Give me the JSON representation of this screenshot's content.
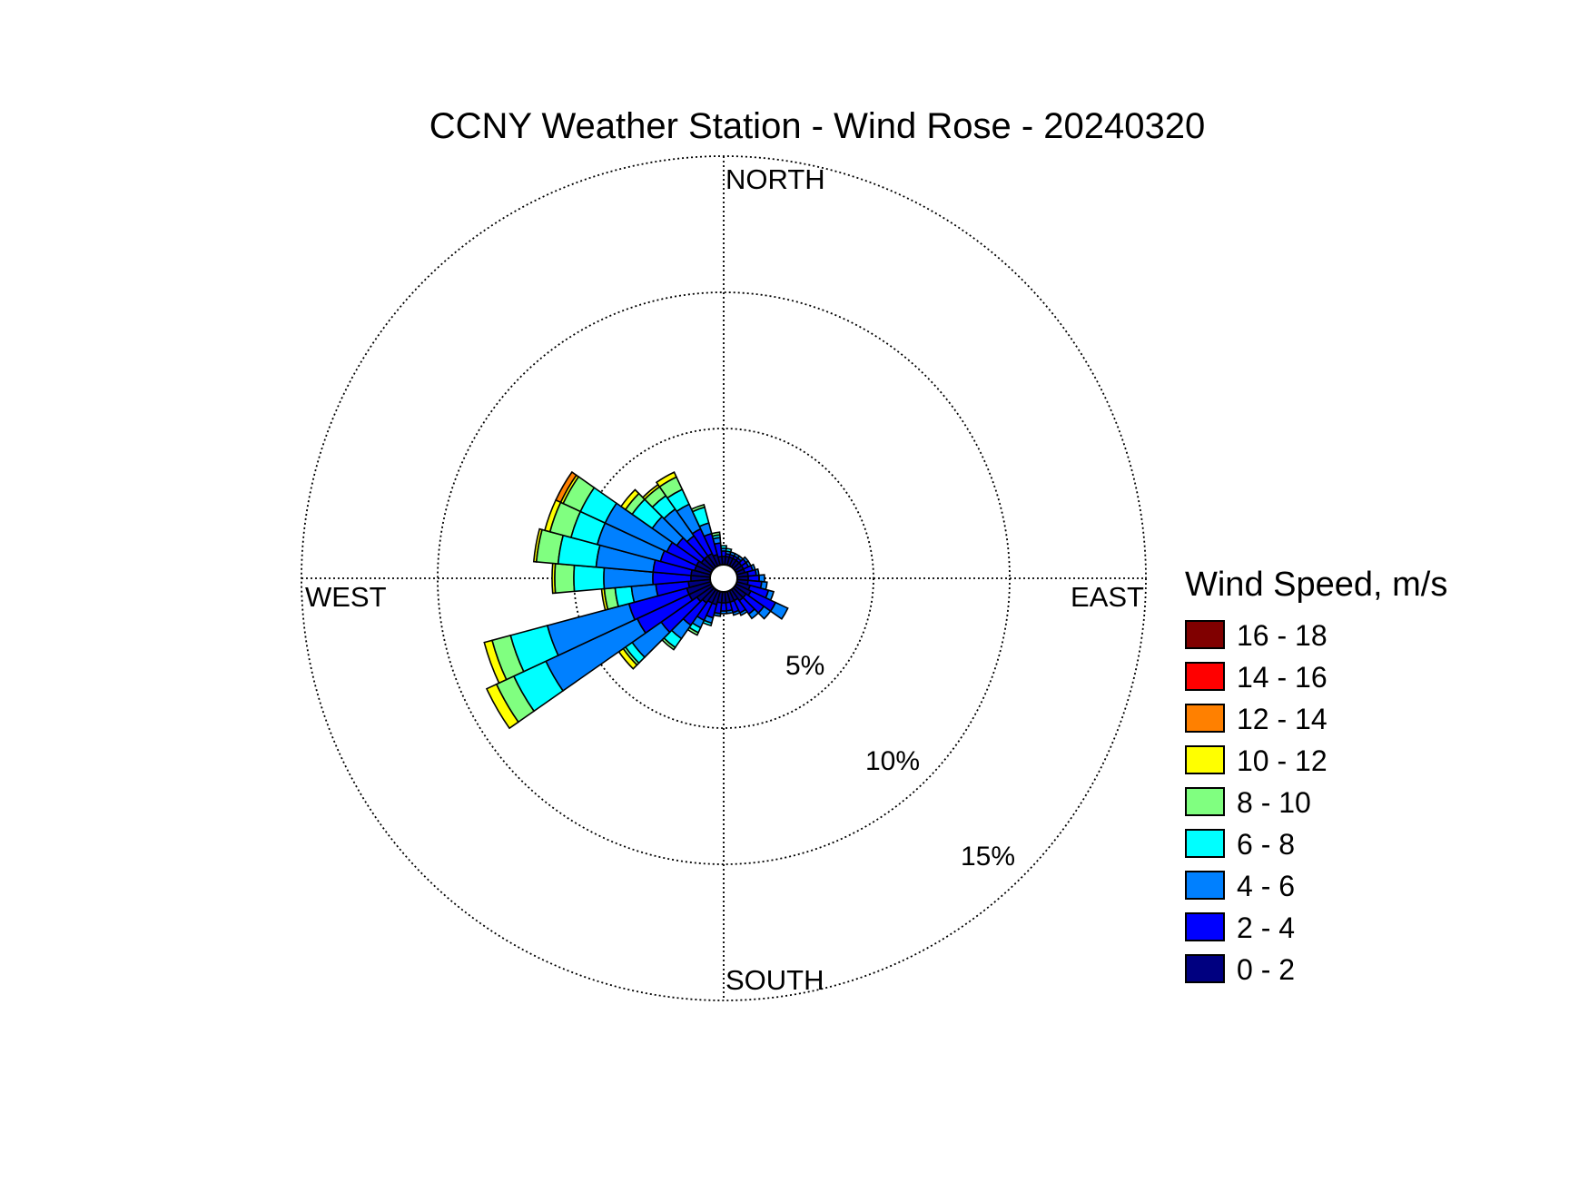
{
  "chart_data": {
    "type": "wind-rose",
    "title": "CCNY Weather Station - Wind Rose - 20240320",
    "direction_labels": {
      "north": "NORTH",
      "east": "EAST",
      "south": "SOUTH",
      "west": "WEST"
    },
    "ring_labels": [
      "5%",
      "10%",
      "15%"
    ],
    "rings_percent": [
      5,
      10,
      15
    ],
    "rmax_percent": 15,
    "sector_width_deg": 10,
    "legend": {
      "title": "Wind Speed, m/s",
      "bins": [
        {
          "label": "16 - 18",
          "color": "#800000"
        },
        {
          "label": "14 - 16",
          "color": "#ff0000"
        },
        {
          "label": "12 - 14",
          "color": "#ff8000"
        },
        {
          "label": "10 - 12",
          "color": "#ffff00"
        },
        {
          "label": "8 - 10",
          "color": "#80ff80"
        },
        {
          "label": "6 - 8",
          "color": "#00ffff"
        },
        {
          "label": "4 - 6",
          "color": "#0080ff"
        },
        {
          "label": "2 - 4",
          "color": "#0000ff"
        },
        {
          "label": "0 - 2",
          "color": "#000080"
        }
      ]
    },
    "speed_bins": [
      "0 - 2",
      "2 - 4",
      "4 - 6",
      "6 - 8",
      "8 - 10",
      "10 - 12",
      "12 - 14",
      "14 - 16",
      "16 - 18"
    ],
    "series_note_units": "percent frequency, cumulative per speed bin (bins listed low to high)",
    "sectors": [
      {
        "dir": 0,
        "cum": [
          0.3,
          0.5,
          0.6,
          0.7,
          0.7,
          0.7,
          0.7,
          0.7,
          0.7
        ]
      },
      {
        "dir": 10,
        "cum": [
          0.3,
          0.4,
          0.5,
          0.6,
          0.6,
          0.6,
          0.6,
          0.6,
          0.6
        ]
      },
      {
        "dir": 20,
        "cum": [
          0.3,
          0.4,
          0.5,
          0.5,
          0.5,
          0.5,
          0.5,
          0.5,
          0.5
        ]
      },
      {
        "dir": 30,
        "cum": [
          0.3,
          0.4,
          0.5,
          0.5,
          0.5,
          0.5,
          0.5,
          0.5,
          0.5
        ]
      },
      {
        "dir": 40,
        "cum": [
          0.3,
          0.4,
          0.5,
          0.5,
          0.5,
          0.5,
          0.5,
          0.5,
          0.5
        ]
      },
      {
        "dir": 50,
        "cum": [
          0.3,
          0.5,
          0.6,
          0.6,
          0.6,
          0.6,
          0.6,
          0.6,
          0.6
        ]
      },
      {
        "dir": 60,
        "cum": [
          0.3,
          0.5,
          0.6,
          0.6,
          0.6,
          0.6,
          0.6,
          0.6,
          0.6
        ]
      },
      {
        "dir": 70,
        "cum": [
          0.3,
          0.6,
          0.7,
          0.7,
          0.7,
          0.7,
          0.7,
          0.7,
          0.7
        ]
      },
      {
        "dir": 80,
        "cum": [
          0.4,
          0.7,
          0.8,
          0.8,
          0.8,
          0.8,
          0.8,
          0.8,
          0.8
        ]
      },
      {
        "dir": 90,
        "cum": [
          0.4,
          0.8,
          1.0,
          1.0,
          1.0,
          1.0,
          1.0,
          1.0,
          1.0
        ]
      },
      {
        "dir": 100,
        "cum": [
          0.4,
          0.9,
          1.1,
          1.1,
          1.1,
          1.1,
          1.1,
          1.1,
          1.1
        ]
      },
      {
        "dir": 110,
        "cum": [
          0.5,
          1.2,
          1.4,
          1.4,
          1.4,
          1.4,
          1.4,
          1.4,
          1.4
        ]
      },
      {
        "dir": 120,
        "cum": [
          0.6,
          1.6,
          2.1,
          2.1,
          2.1,
          2.1,
          2.1,
          2.1,
          2.1
        ]
      },
      {
        "dir": 130,
        "cum": [
          0.5,
          1.3,
          1.6,
          1.6,
          1.6,
          1.6,
          1.6,
          1.6,
          1.6
        ]
      },
      {
        "dir": 140,
        "cum": [
          0.5,
          1.1,
          1.3,
          1.3,
          1.3,
          1.3,
          1.3,
          1.3,
          1.3
        ]
      },
      {
        "dir": 150,
        "cum": [
          0.4,
          0.9,
          1.0,
          1.0,
          1.0,
          1.0,
          1.0,
          1.0,
          1.0
        ]
      },
      {
        "dir": 160,
        "cum": [
          0.4,
          0.8,
          0.9,
          0.9,
          0.9,
          0.9,
          0.9,
          0.9,
          0.9
        ]
      },
      {
        "dir": 170,
        "cum": [
          0.4,
          0.7,
          0.8,
          0.8,
          0.8,
          0.8,
          0.8,
          0.8,
          0.8
        ]
      },
      {
        "dir": 180,
        "cum": [
          0.4,
          0.7,
          0.8,
          0.8,
          0.8,
          0.8,
          0.8,
          0.8,
          0.8
        ]
      },
      {
        "dir": 190,
        "cum": [
          0.4,
          0.8,
          0.9,
          0.9,
          0.9,
          0.9,
          0.9,
          0.9,
          0.9
        ]
      },
      {
        "dir": 200,
        "cum": [
          0.5,
          1.0,
          1.2,
          1.3,
          1.3,
          1.3,
          1.3,
          1.3,
          1.3
        ]
      },
      {
        "dir": 210,
        "cum": [
          0.5,
          1.2,
          1.5,
          1.7,
          1.8,
          1.8,
          1.8,
          1.8,
          1.8
        ]
      },
      {
        "dir": 220,
        "cum": [
          0.6,
          1.6,
          2.2,
          2.6,
          2.7,
          2.7,
          2.7,
          2.7,
          2.7
        ]
      },
      {
        "dir": 230,
        "cum": [
          0.7,
          2.3,
          3.6,
          3.9,
          4.0,
          4.2,
          4.2,
          4.2,
          4.2
        ]
      },
      {
        "dir": 240,
        "cum": [
          0.9,
          3.0,
          6.7,
          8.0,
          8.7,
          9.1,
          9.1,
          9.1,
          9.1
        ]
      },
      {
        "dir": 250,
        "cum": [
          0.9,
          3.1,
          6.2,
          7.6,
          8.3,
          8.6,
          8.6,
          8.6,
          8.6
        ]
      },
      {
        "dir": 260,
        "cum": [
          0.8,
          2.0,
          2.9,
          3.5,
          3.9,
          4.0,
          4.0,
          4.0,
          4.0
        ]
      },
      {
        "dir": 270,
        "cum": [
          0.7,
          2.1,
          3.9,
          5.0,
          5.7,
          5.8,
          5.8,
          5.8,
          5.8
        ]
      },
      {
        "dir": 280,
        "cum": [
          0.7,
          2.1,
          4.2,
          5.6,
          6.4,
          6.5,
          6.5,
          6.5,
          6.5
        ]
      },
      {
        "dir": 290,
        "cum": [
          0.6,
          1.9,
          4.3,
          5.3,
          6.1,
          6.3,
          6.3,
          6.3,
          6.3
        ]
      },
      {
        "dir": 300,
        "cum": [
          0.6,
          1.8,
          4.3,
          5.3,
          6.0,
          6.1,
          6.3,
          6.3,
          6.3
        ]
      },
      {
        "dir": 310,
        "cum": [
          0.5,
          1.6,
          2.7,
          3.6,
          3.9,
          4.1,
          4.1,
          4.1,
          4.1
        ]
      },
      {
        "dir": 320,
        "cum": [
          0.5,
          1.4,
          2.6,
          3.2,
          3.6,
          3.7,
          3.7,
          3.7,
          3.7
        ]
      },
      {
        "dir": 330,
        "cum": [
          0.5,
          1.5,
          2.5,
          3.1,
          3.6,
          3.8,
          3.8,
          3.8,
          3.8
        ]
      },
      {
        "dir": 340,
        "cum": [
          0.4,
          1.2,
          1.6,
          2.2,
          2.3,
          2.3,
          2.3,
          2.3,
          2.3
        ]
      },
      {
        "dir": 350,
        "cum": [
          0.3,
          0.8,
          1.0,
          1.1,
          1.2,
          1.2,
          1.2,
          1.2,
          1.2
        ]
      }
    ]
  }
}
